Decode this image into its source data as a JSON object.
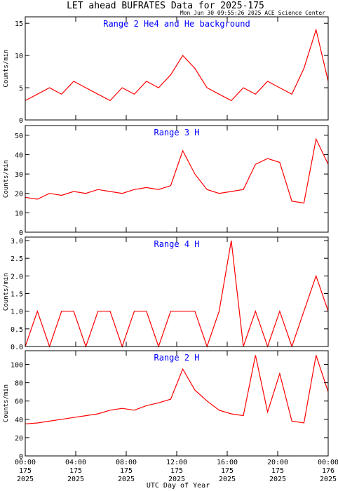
{
  "title": "LET ahead BUFRATES Data for 2025-175",
  "timestamp": "Mon Jun 30 09:55:26 2025 ACE Science Center",
  "xlabel": "UTC Day of Year",
  "colors": {
    "trace": "#ff0000",
    "panel_label": "#0000ff",
    "axis": "#000000",
    "background": "#ffffff"
  },
  "x_ticks": [
    {
      "time": "00:00",
      "doy": "175",
      "year": "2025"
    },
    {
      "time": "04:00",
      "doy": "175",
      "year": "2025"
    },
    {
      "time": "08:00",
      "doy": "175",
      "year": "2025"
    },
    {
      "time": "12:00",
      "doy": "175",
      "year": "2025"
    },
    {
      "time": "16:00",
      "doy": "175",
      "year": "2025"
    },
    {
      "time": "20:00",
      "doy": "175",
      "year": "2025"
    },
    {
      "time": "00:00",
      "doy": "176",
      "year": "2025"
    }
  ],
  "chart_data": [
    {
      "type": "line",
      "panel_label": "Range 2 He4 and He background",
      "ylabel": "Counts/min",
      "ylim": [
        0,
        16
      ],
      "yticks": [
        0,
        5,
        10,
        15
      ],
      "x_range_hours": [
        0,
        24
      ],
      "series": [
        {
          "values": [
            3,
            4,
            5,
            4,
            6,
            5,
            4,
            3,
            5,
            4,
            6,
            5,
            7,
            10,
            8,
            5,
            4,
            3,
            5,
            4,
            6,
            5,
            4,
            8,
            14,
            6
          ]
        }
      ]
    },
    {
      "type": "line",
      "panel_label": "Range 3 H",
      "ylabel": "Counts/min",
      "ylim": [
        0,
        55
      ],
      "yticks": [
        0,
        10,
        20,
        30,
        40,
        50
      ],
      "x_range_hours": [
        0,
        24
      ],
      "series": [
        {
          "values": [
            18,
            17,
            20,
            19,
            21,
            20,
            22,
            21,
            20,
            22,
            23,
            22,
            24,
            42,
            30,
            22,
            20,
            21,
            22,
            35,
            38,
            36,
            16,
            15,
            48,
            35
          ]
        }
      ]
    },
    {
      "type": "line",
      "panel_label": "Range 4 H",
      "ylabel": "Counts/min",
      "ylim": [
        0,
        3.1
      ],
      "yticks": [
        0.0,
        0.5,
        1.0,
        1.5,
        2.0,
        2.5,
        3.0
      ],
      "x_range_hours": [
        0,
        24
      ],
      "series": [
        {
          "values": [
            0,
            1,
            0,
            1,
            1,
            0,
            1,
            1,
            0,
            1,
            1,
            0,
            1,
            1,
            1,
            0,
            1,
            3,
            0,
            1,
            0,
            1,
            0,
            1,
            2,
            1
          ]
        }
      ]
    },
    {
      "type": "line",
      "panel_label": "Range 2 H",
      "ylabel": "Counts/min",
      "ylim": [
        0,
        115
      ],
      "yticks": [
        0,
        20,
        40,
        60,
        80,
        100
      ],
      "x_range_hours": [
        0,
        24
      ],
      "series": [
        {
          "values": [
            35,
            36,
            38,
            40,
            42,
            44,
            46,
            50,
            52,
            50,
            55,
            58,
            62,
            95,
            72,
            60,
            50,
            46,
            44,
            110,
            48,
            90,
            38,
            36,
            110,
            70
          ]
        }
      ]
    }
  ]
}
